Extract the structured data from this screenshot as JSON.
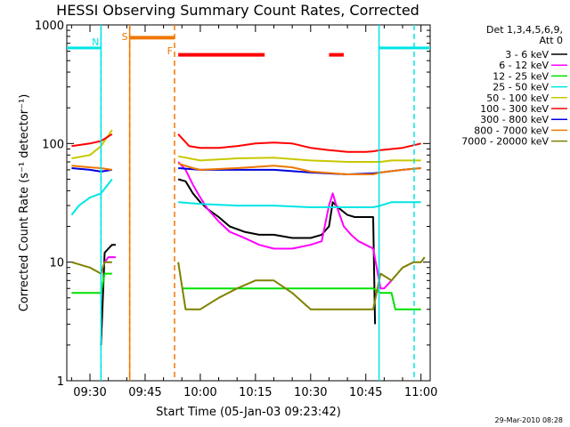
{
  "chart_data": {
    "type": "line",
    "title": "HESSI Observing Summary Count Rates, Corrected",
    "xlabel": "Start Time (05-Jan-03 09:23:42)",
    "ylabel": "Corrected Count Rate (s⁻¹ detector⁻¹)",
    "xlim": [
      "09:23:42",
      "11:02:30"
    ],
    "ylim": [
      1,
      1000
    ],
    "yscale": "log",
    "x_ticks": [
      "09:30",
      "09:45",
      "10:00",
      "10:15",
      "10:30",
      "10:45",
      "11:00"
    ],
    "y_ticks": [
      "1",
      "10",
      "100",
      "1000"
    ],
    "legend_position": "right",
    "legend_header": [
      "Det 1,3,4,5,6,9,",
      "Att 0"
    ],
    "footer_timestamp": "29-Mar-2010 08:28",
    "flags": [
      {
        "label": "N",
        "color": "#00e5e5",
        "time": "09:33:00"
      },
      {
        "label": "S",
        "color": "#f07800",
        "time": "09:40:48"
      },
      {
        "label": "F",
        "color": "#f07800",
        "time": "09:53:00"
      }
    ],
    "night_intervals": [
      {
        "start": "09:23:42",
        "end": "09:33:00",
        "level": 640
      },
      {
        "start": "10:48:36",
        "end": "11:02:30",
        "level": 640
      }
    ],
    "saa_interval": {
      "start": "09:40:48",
      "end": "09:53:00",
      "level": 780
    },
    "flare_intervals": [
      {
        "start": "09:54:00",
        "end": "10:17:30",
        "level": 560
      },
      {
        "start": "10:35:00",
        "end": "10:39:00",
        "level": 560
      }
    ],
    "series": [
      {
        "name": "3 - 6 keV",
        "color": "#000000",
        "x": [
          "09:25",
          "09:30",
          "09:32",
          "09:33",
          "09:34",
          "09:35",
          "09:36",
          "09:37",
          "09:38",
          "09:53",
          "09:54",
          "09:56",
          "09:58",
          "10:00",
          "10:02",
          "10:05",
          "10:08",
          "10:12",
          "10:16",
          "10:20",
          "10:25",
          "10:30",
          "10:33",
          "10:35",
          "10:36",
          "10:38",
          "10:40",
          "10:42",
          "10:45",
          "10:47",
          "10:47:30"
        ],
        "y": [
          null,
          null,
          null,
          2,
          12,
          13,
          14,
          14,
          null,
          null,
          50,
          48,
          38,
          32,
          28,
          24,
          20,
          18,
          17,
          17,
          16,
          16,
          17,
          20,
          32,
          28,
          25,
          24,
          24,
          24,
          3
        ]
      },
      {
        "name": "6 - 12 keV",
        "color": "#ff00ff",
        "x": [
          "09:25",
          "09:33",
          "09:34",
          "09:35",
          "09:37",
          "09:38",
          "09:53",
          "09:54",
          "09:56",
          "09:58",
          "10:00",
          "10:02",
          "10:05",
          "10:08",
          "10:12",
          "10:16",
          "10:20",
          "10:25",
          "10:30",
          "10:33",
          "10:35",
          "10:36",
          "10:37",
          "10:39",
          "10:41",
          "10:43",
          "10:45",
          "10:47",
          "10:49",
          "10:50",
          "10:52"
        ],
        "y": [
          null,
          null,
          10,
          11,
          11,
          null,
          null,
          70,
          60,
          45,
          35,
          28,
          22,
          18,
          16,
          14,
          13,
          13,
          14,
          15,
          30,
          38,
          30,
          20,
          17,
          15,
          14,
          13,
          6,
          6,
          7
        ]
      },
      {
        "name": "12 - 25 keV",
        "color": "#00e000",
        "x": [
          "09:25",
          "09:30",
          "09:33",
          "09:34",
          "09:36",
          "09:38",
          "09:53",
          "09:55",
          "10:00",
          "10:10",
          "10:20",
          "10:30",
          "10:40",
          "10:47",
          "10:49",
          "10:52",
          "10:53",
          "11:00"
        ],
        "y": [
          5.5,
          5.5,
          5.5,
          8,
          8,
          null,
          null,
          6,
          6,
          6,
          6,
          6,
          6,
          6,
          5.5,
          5.5,
          4,
          4
        ]
      },
      {
        "name": "25 - 50 keV",
        "color": "#00e5e5",
        "x": [
          "09:25",
          "09:27",
          "09:30",
          "09:33",
          "09:36",
          "09:38",
          "09:53",
          "09:54",
          "10:00",
          "10:10",
          "10:20",
          "10:30",
          "10:40",
          "10:47",
          "10:49",
          "10:52",
          "10:55",
          "11:00"
        ],
        "y": [
          25,
          30,
          35,
          38,
          50,
          null,
          null,
          32,
          31,
          30,
          30,
          29,
          29,
          29,
          30,
          32,
          32,
          32
        ]
      },
      {
        "name": "50 - 100 keV",
        "color": "#c8c800",
        "x": [
          "09:25",
          "09:30",
          "09:33",
          "09:36",
          "09:38",
          "09:53",
          "09:54",
          "10:00",
          "10:10",
          "10:20",
          "10:30",
          "10:40",
          "10:47",
          "10:49",
          "10:52",
          "10:55",
          "11:00"
        ],
        "y": [
          75,
          80,
          95,
          130,
          null,
          null,
          78,
          72,
          75,
          76,
          72,
          70,
          70,
          70,
          72,
          72,
          72
        ]
      },
      {
        "name": "100 - 300 keV",
        "color": "#ff0000",
        "x": [
          "09:25",
          "09:30",
          "09:33",
          "09:36",
          "09:38",
          "09:53",
          "09:54",
          "09:57",
          "10:00",
          "10:05",
          "10:10",
          "10:15",
          "10:20",
          "10:25",
          "10:30",
          "10:35",
          "10:40",
          "10:45",
          "10:47",
          "10:49",
          "10:55",
          "11:00"
        ],
        "y": [
          95,
          100,
          105,
          120,
          null,
          null,
          120,
          95,
          92,
          92,
          95,
          100,
          102,
          100,
          92,
          88,
          85,
          85,
          86,
          88,
          92,
          100
        ]
      },
      {
        "name": "300 - 800 keV",
        "color": "#0000dd",
        "x": [
          "09:25",
          "09:30",
          "09:33",
          "09:36",
          "09:38",
          "09:53",
          "09:54",
          "10:00",
          "10:10",
          "10:20",
          "10:30",
          "10:40",
          "10:47",
          "10:49",
          "10:55",
          "11:00"
        ],
        "y": [
          62,
          60,
          58,
          60,
          null,
          null,
          62,
          60,
          60,
          60,
          57,
          55,
          56,
          57,
          60,
          62
        ]
      },
      {
        "name": "800 - 7000 keV",
        "color": "#f07800",
        "x": [
          "09:25",
          "09:30",
          "09:33",
          "09:36",
          "09:38",
          "09:53",
          "09:54",
          "09:58",
          "10:00",
          "10:10",
          "10:20",
          "10:25",
          "10:30",
          "10:40",
          "10:47",
          "10:49",
          "10:55",
          "11:00"
        ],
        "y": [
          65,
          63,
          62,
          60,
          null,
          null,
          68,
          62,
          60,
          62,
          65,
          63,
          58,
          55,
          55,
          57,
          60,
          62
        ]
      },
      {
        "name": "7000 - 20000 keV",
        "color": "#808000",
        "x": [
          "09:25",
          "09:30",
          "09:33",
          "09:34",
          "09:36",
          "09:38",
          "09:53",
          "09:54",
          "09:56",
          "10:00",
          "10:05",
          "10:10",
          "10:15",
          "10:20",
          "10:25",
          "10:30",
          "10:35",
          "10:40",
          "10:45",
          "10:47",
          "10:49",
          "10:52",
          "10:55",
          "10:58",
          "11:00",
          "11:01"
        ],
        "y": [
          10,
          9,
          8,
          10,
          10,
          null,
          null,
          10,
          4,
          4,
          5,
          6,
          7,
          7,
          5.5,
          4,
          4,
          4,
          4,
          4,
          8,
          7,
          9,
          10,
          10,
          11
        ]
      }
    ]
  }
}
